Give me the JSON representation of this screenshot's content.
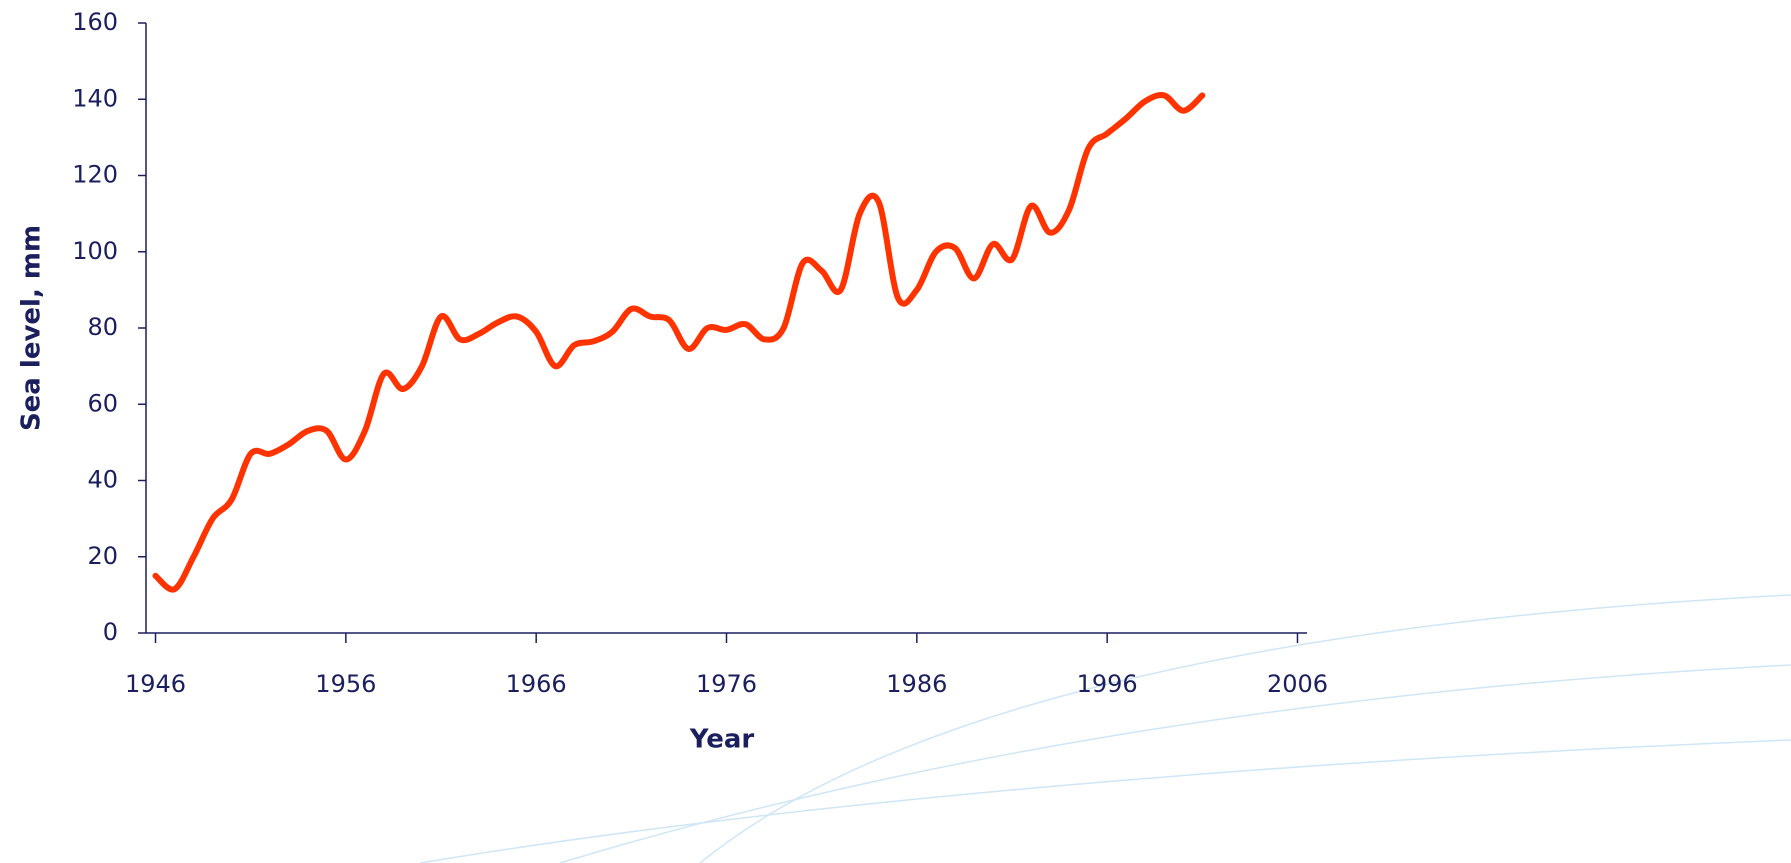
{
  "chart_data": {
    "type": "line",
    "x_label": "Year",
    "y_label": "Sea level, mm",
    "x": [
      1946,
      1947,
      1948,
      1949,
      1950,
      1951,
      1952,
      1953,
      1954,
      1955,
      1956,
      1957,
      1958,
      1959,
      1960,
      1961,
      1962,
      1963,
      1964,
      1965,
      1966,
      1967,
      1968,
      1969,
      1970,
      1971,
      1972,
      1973,
      1974,
      1975,
      1976,
      1977,
      1978,
      1979,
      1980,
      1981,
      1982,
      1983,
      1984,
      1985,
      1986,
      1987,
      1988,
      1989,
      1990,
      1991,
      1992,
      1993,
      1994,
      1995,
      1996,
      1997,
      1998,
      1999,
      2000,
      2001
    ],
    "series": [
      {
        "color": "#ff3300",
        "values": [
          15,
          11.5,
          20,
          30,
          35,
          47,
          47,
          49.5,
          53,
          53,
          45.5,
          53,
          68,
          64,
          70,
          83,
          77,
          78.5,
          81.5,
          83,
          79,
          70,
          75.5,
          76.5,
          79,
          85,
          83,
          82,
          74.5,
          80,
          79.5,
          81,
          77,
          80,
          97,
          95,
          90,
          110,
          113,
          88,
          90,
          100,
          101,
          93,
          102,
          98,
          112,
          105,
          111,
          127,
          131,
          135,
          139.5,
          141,
          137,
          141
        ]
      }
    ],
    "xlim": [
      1945.5,
      2006.5
    ],
    "xticks": [
      1946,
      1956,
      1966,
      1976,
      1986,
      1996,
      2006
    ],
    "ylim": [
      0,
      160
    ],
    "yticks": [
      0,
      20,
      40,
      60,
      80,
      100,
      120,
      140,
      160
    ]
  }
}
